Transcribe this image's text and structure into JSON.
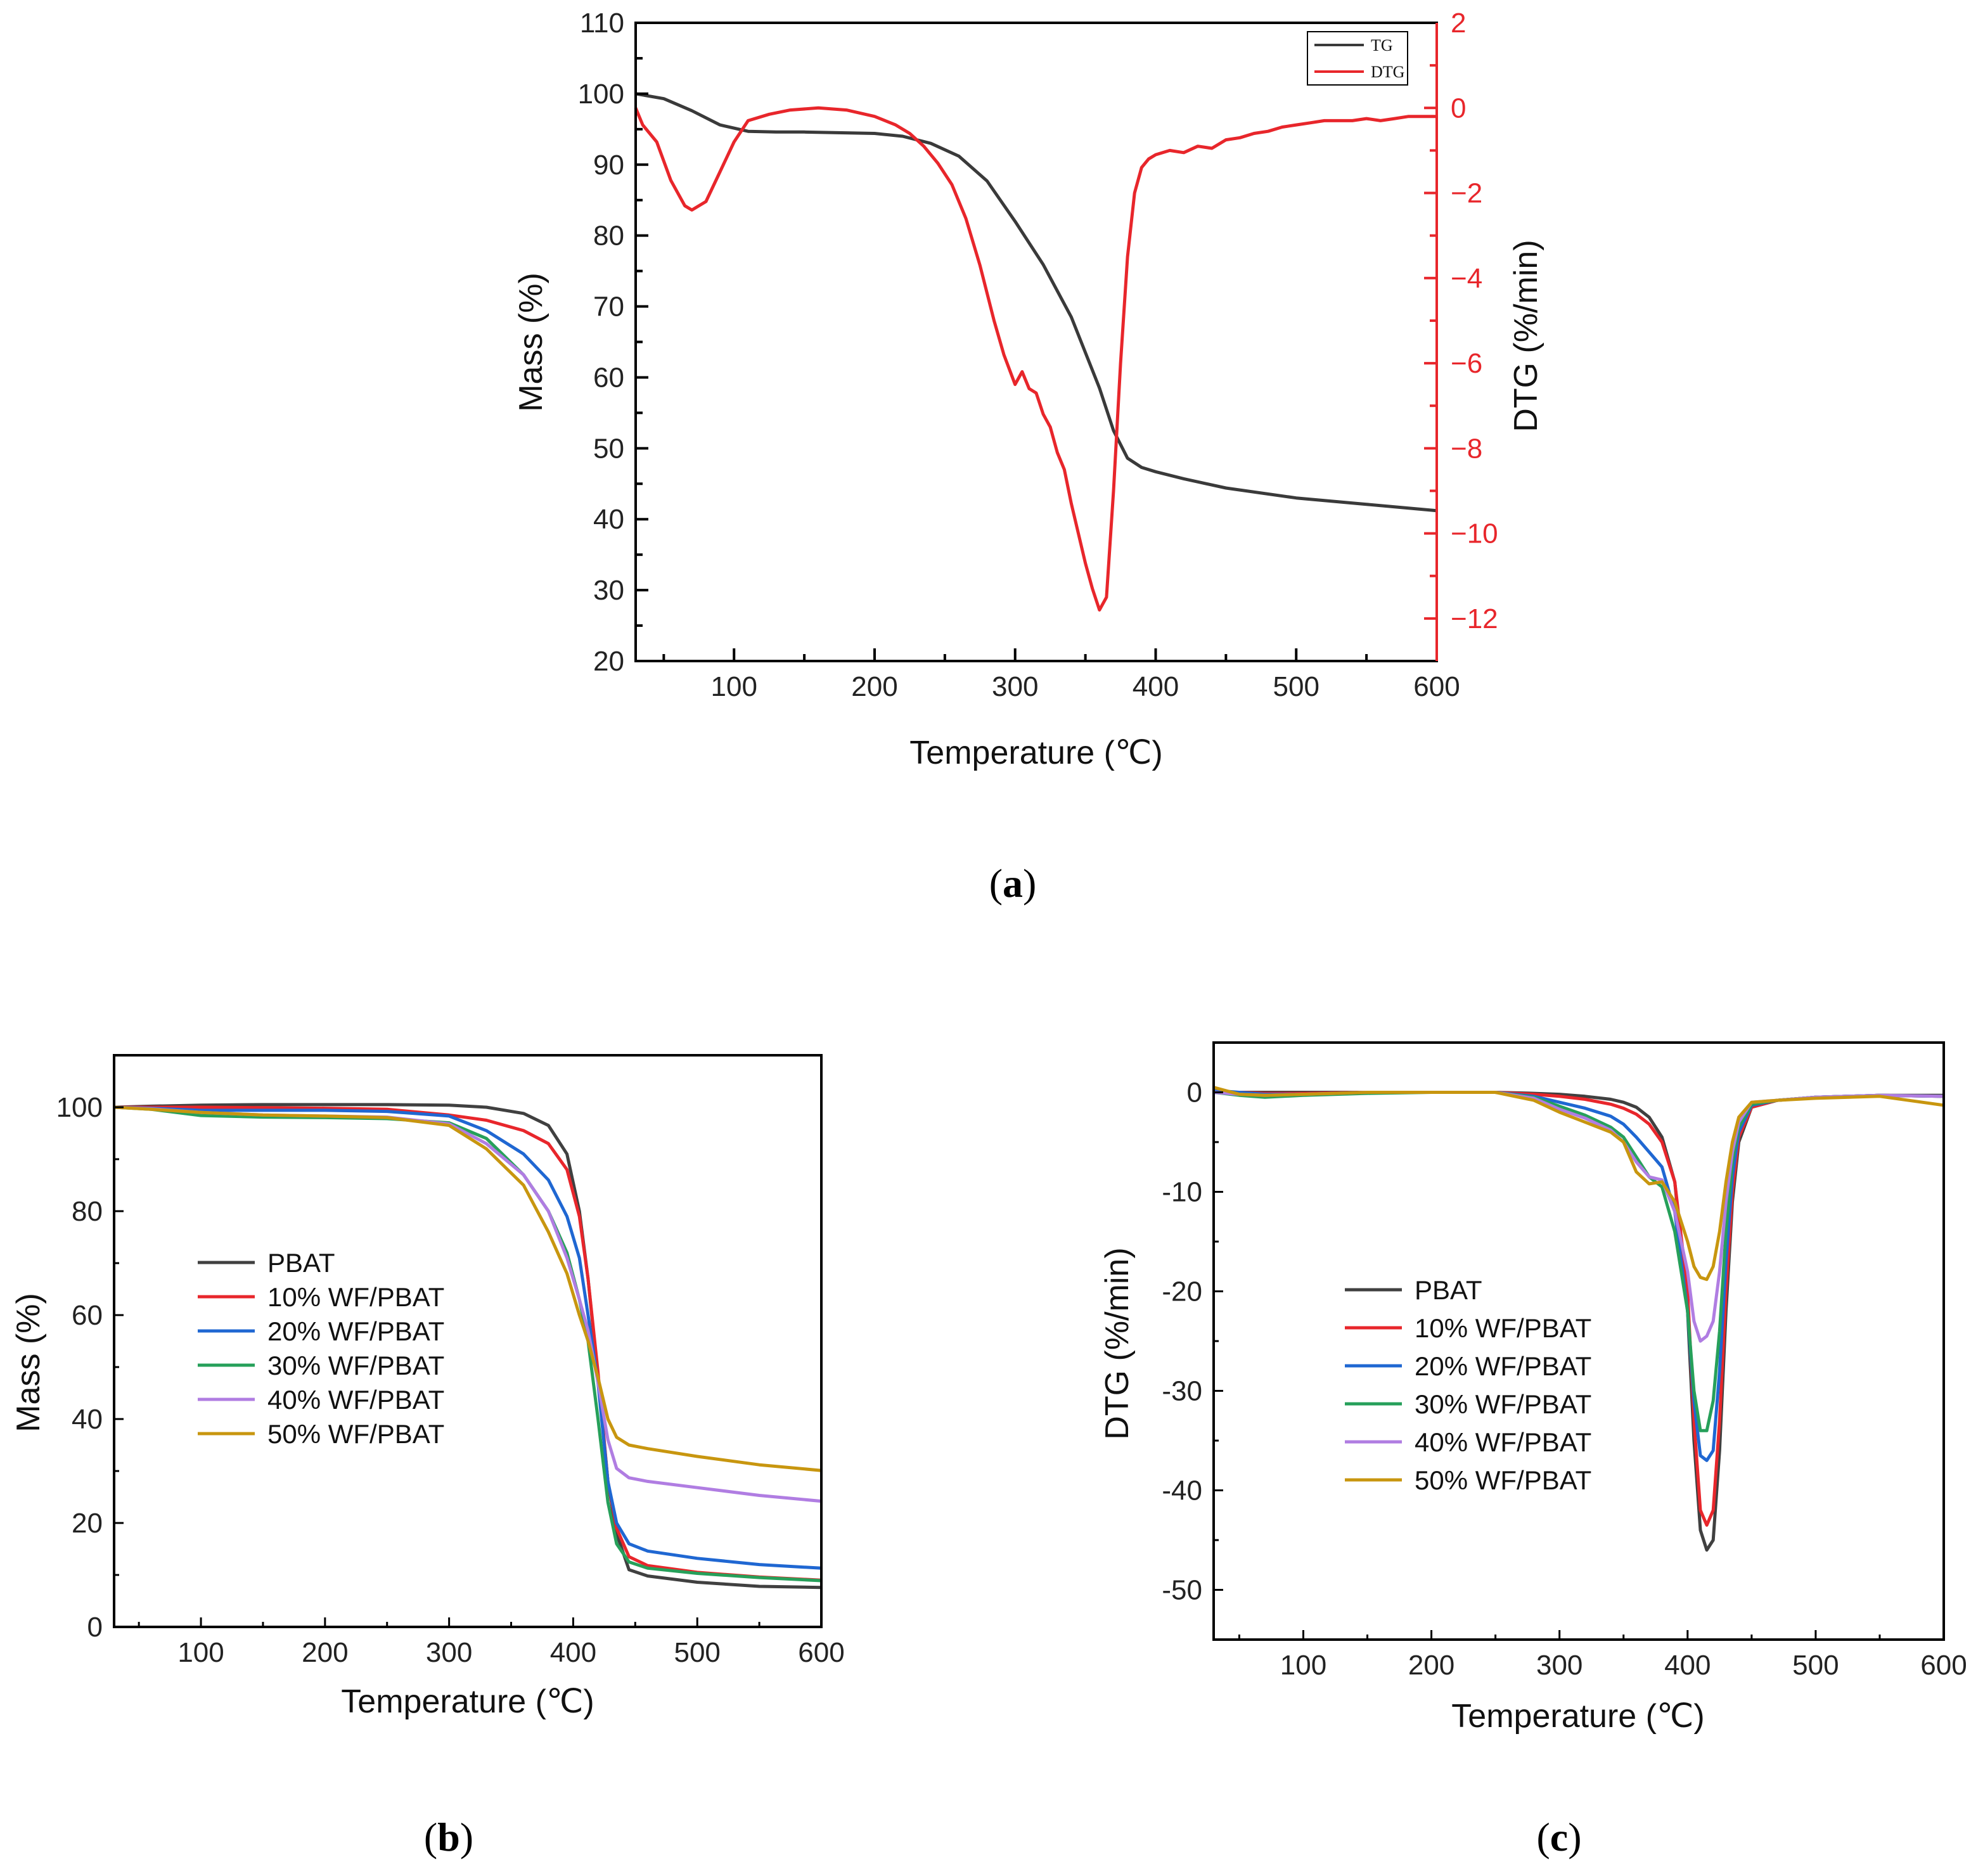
{
  "chart_data": [
    {
      "id": "a",
      "type": "line",
      "panel_label": {
        "open": "(",
        "letter": "a",
        "close": ")"
      },
      "xlabel": "Temperature (℃)",
      "ylabel": "Mass (%)",
      "y2label": "DTG (%/min)",
      "xlim": [
        30,
        600
      ],
      "ylim": [
        20,
        110
      ],
      "y2lim": [
        -13,
        2
      ],
      "xticks": [
        100,
        200,
        300,
        400,
        500,
        600
      ],
      "yticks": [
        20,
        30,
        40,
        50,
        60,
        70,
        80,
        90,
        100,
        110
      ],
      "y2ticks": [
        2,
        0,
        -2,
        -4,
        -6,
        -8,
        -10,
        -12
      ],
      "y2tick_labels": [
        "2",
        "0",
        "−2",
        "−4",
        "−6",
        "−8",
        "−10",
        "−12"
      ],
      "legend_position": "top-right",
      "colors": {
        "axis": "#000000",
        "right_axis": "#e8262b"
      },
      "series": [
        {
          "name": "TG",
          "axis": "left",
          "color": "#3a3a3a",
          "x": [
            30,
            50,
            70,
            90,
            110,
            130,
            150,
            200,
            220,
            240,
            260,
            280,
            300,
            320,
            340,
            360,
            370,
            380,
            390,
            400,
            420,
            450,
            500,
            550,
            600
          ],
          "y": [
            100,
            99.3,
            97.6,
            95.6,
            94.7,
            94.6,
            94.6,
            94.4,
            94,
            93,
            91.2,
            87.7,
            82,
            75.9,
            68.5,
            58.5,
            52.5,
            48.6,
            47.3,
            46.7,
            45.7,
            44.4,
            43,
            42.1,
            41.2
          ]
        },
        {
          "name": "DTG",
          "axis": "right",
          "color": "#e8262b",
          "x": [
            30,
            35,
            45,
            55,
            65,
            70,
            80,
            90,
            100,
            110,
            125,
            140,
            160,
            180,
            200,
            215,
            225,
            235,
            245,
            255,
            265,
            275,
            285,
            292,
            300,
            305,
            310,
            315,
            320,
            325,
            330,
            335,
            340,
            345,
            350,
            355,
            360,
            365,
            370,
            375,
            380,
            385,
            390,
            395,
            400,
            410,
            420,
            430,
            440,
            450,
            460,
            470,
            480,
            490,
            500,
            510,
            520,
            530,
            540,
            550,
            560,
            570,
            580,
            590,
            600
          ],
          "y": [
            0,
            -0.4,
            -0.8,
            -1.7,
            -2.3,
            -2.4,
            -2.2,
            -1.5,
            -0.8,
            -0.3,
            -0.15,
            -0.05,
            0,
            -0.05,
            -0.2,
            -0.4,
            -0.6,
            -0.9,
            -1.3,
            -1.8,
            -2.6,
            -3.7,
            -5,
            -5.8,
            -6.5,
            -6.2,
            -6.6,
            -6.7,
            -7.2,
            -7.5,
            -8.1,
            -8.5,
            -9.3,
            -10,
            -10.7,
            -11.3,
            -11.8,
            -11.5,
            -9,
            -6,
            -3.5,
            -2,
            -1.4,
            -1.2,
            -1.1,
            -1,
            -1.05,
            -0.9,
            -0.95,
            -0.75,
            -0.7,
            -0.6,
            -0.55,
            -0.45,
            -0.4,
            -0.35,
            -0.3,
            -0.3,
            -0.3,
            -0.25,
            -0.3,
            -0.25,
            -0.2,
            -0.2,
            -0.2
          ]
        }
      ]
    },
    {
      "id": "b",
      "type": "line",
      "panel_label": {
        "open": "(",
        "letter": "b",
        "close": ")"
      },
      "xlabel": "Temperature (℃)",
      "ylabel": "Mass (%)",
      "xlim": [
        30,
        600
      ],
      "ylim": [
        0,
        110
      ],
      "xticks": [
        100,
        200,
        300,
        400,
        500,
        600
      ],
      "yticks": [
        0,
        20,
        40,
        60,
        80,
        100
      ],
      "legend_position": "center-left",
      "x": [
        30,
        60,
        100,
        150,
        200,
        250,
        300,
        330,
        360,
        380,
        395,
        405,
        412,
        420,
        428,
        435,
        445,
        460,
        500,
        550,
        600
      ],
      "series": [
        {
          "name": "PBAT",
          "color": "#404040",
          "y": [
            100,
            100.2,
            100.4,
            100.5,
            100.5,
            100.5,
            100.4,
            100,
            98.8,
            96.5,
            91,
            80,
            67,
            48,
            28,
            18,
            11,
            9.8,
            8.6,
            7.8,
            7.6
          ]
        },
        {
          "name": "10% WF/PBAT",
          "color": "#e8262b",
          "y": [
            100,
            100,
            100,
            99.9,
            99.8,
            99.6,
            98.5,
            97.5,
            95.5,
            93,
            88,
            79,
            67,
            49,
            28,
            19,
            13.5,
            11.8,
            10.5,
            9.6,
            9
          ]
        },
        {
          "name": "20% WF/PBAT",
          "color": "#1f67d2",
          "y": [
            100,
            99.8,
            99.4,
            99.4,
            99.4,
            99.2,
            98.3,
            95.5,
            91,
            86,
            79,
            71,
            60,
            47,
            28,
            20,
            16,
            14.6,
            13.2,
            12,
            11.3
          ]
        },
        {
          "name": "30% WF/PBAT",
          "color": "#26a05a",
          "y": [
            100,
            99.6,
            98.4,
            98.1,
            98,
            97.8,
            97,
            94,
            87,
            80,
            72,
            63,
            55,
            40,
            24,
            16,
            12.5,
            11.3,
            10.3,
            9.5,
            8.9
          ]
        },
        {
          "name": "40% WF/PBAT",
          "color": "#b07de2",
          "y": [
            100,
            99.7,
            99,
            98.5,
            98.3,
            98.1,
            96.8,
            93,
            87,
            80,
            71,
            63,
            57,
            47,
            36,
            30.5,
            28.7,
            28,
            26.8,
            25.3,
            24.2
          ]
        },
        {
          "name": "50% WF/PBAT",
          "color": "#c8960f",
          "y": [
            100,
            99.6,
            99,
            98.5,
            98.3,
            98,
            96.5,
            92,
            85,
            76,
            68,
            60,
            55,
            48,
            40,
            36.5,
            35,
            34.3,
            32.8,
            31.2,
            30.1
          ]
        }
      ]
    },
    {
      "id": "c",
      "type": "line",
      "panel_label": {
        "open": "(",
        "letter": "c",
        "close": ")"
      },
      "xlabel": "Temperature (℃)",
      "ylabel": "DTG (%/min)",
      "xlim": [
        30,
        600
      ],
      "ylim": [
        -55,
        5
      ],
      "xticks": [
        100,
        200,
        300,
        400,
        500,
        600
      ],
      "yticks": [
        0,
        -10,
        -20,
        -30,
        -40,
        -50
      ],
      "legend_position": "center-left",
      "x": [
        30,
        50,
        70,
        100,
        150,
        200,
        250,
        280,
        300,
        320,
        340,
        350,
        360,
        370,
        380,
        390,
        400,
        405,
        410,
        415,
        420,
        425,
        430,
        435,
        440,
        450,
        470,
        500,
        550,
        600
      ],
      "series": [
        {
          "name": "PBAT",
          "color": "#404040",
          "y": [
            0,
            0,
            0,
            0,
            0,
            0,
            0,
            -0.1,
            -0.2,
            -0.4,
            -0.7,
            -1,
            -1.5,
            -2.5,
            -4.5,
            -9,
            -22,
            -35,
            -44,
            -46,
            -45,
            -36,
            -22,
            -11,
            -5,
            -1.5,
            -0.8,
            -0.5,
            -0.3,
            -0.3
          ]
        },
        {
          "name": "10% WF/PBAT",
          "color": "#e8262b",
          "y": [
            0,
            0,
            -0.1,
            -0.1,
            0,
            0,
            0,
            -0.2,
            -0.4,
            -0.7,
            -1.2,
            -1.6,
            -2.2,
            -3.2,
            -5,
            -9,
            -20,
            -33,
            -42,
            -43.5,
            -42,
            -33,
            -20,
            -10,
            -4.5,
            -1.5,
            -0.8,
            -0.5,
            -0.3,
            -0.4
          ]
        },
        {
          "name": "20% WF/PBAT",
          "color": "#1f67d2",
          "y": [
            0.2,
            0,
            -0.2,
            -0.2,
            0,
            0,
            0,
            -0.4,
            -1,
            -1.6,
            -2.4,
            -3.2,
            -4.5,
            -6,
            -7.5,
            -12,
            -22,
            -31,
            -36.5,
            -37,
            -36,
            -28,
            -17,
            -8.5,
            -4,
            -1.3,
            -0.8,
            -0.5,
            -0.3,
            -0.4
          ]
        },
        {
          "name": "30% WF/PBAT",
          "color": "#26a05a",
          "y": [
            0,
            -0.3,
            -0.5,
            -0.3,
            -0.1,
            0,
            0,
            -0.5,
            -1.4,
            -2.3,
            -3.5,
            -4.5,
            -6.5,
            -8.5,
            -9.5,
            -14,
            -22,
            -30,
            -34,
            -34,
            -31,
            -24,
            -14,
            -7,
            -3.5,
            -1.2,
            -0.8,
            -0.5,
            -0.3,
            -0.4
          ]
        },
        {
          "name": "40% WF/PBAT",
          "color": "#b07de2",
          "y": [
            0,
            -0.2,
            -0.3,
            -0.2,
            0,
            0,
            0,
            -0.6,
            -1.7,
            -2.6,
            -3.8,
            -5,
            -7,
            -8.5,
            -8.8,
            -12,
            -18,
            -23,
            -25,
            -24.5,
            -23,
            -18,
            -11,
            -6,
            -3,
            -1,
            -0.8,
            -0.5,
            -0.3,
            -0.4
          ]
        },
        {
          "name": "50% WF/PBAT",
          "color": "#c8960f",
          "y": [
            0.5,
            -0.2,
            -0.3,
            -0.2,
            0,
            0,
            0,
            -0.8,
            -2,
            -3,
            -4,
            -5,
            -8,
            -9.2,
            -9,
            -11,
            -15,
            -17.5,
            -18.6,
            -18.8,
            -17.5,
            -14,
            -9,
            -5,
            -2.5,
            -1,
            -0.8,
            -0.6,
            -0.4,
            -1.3
          ]
        }
      ]
    }
  ]
}
